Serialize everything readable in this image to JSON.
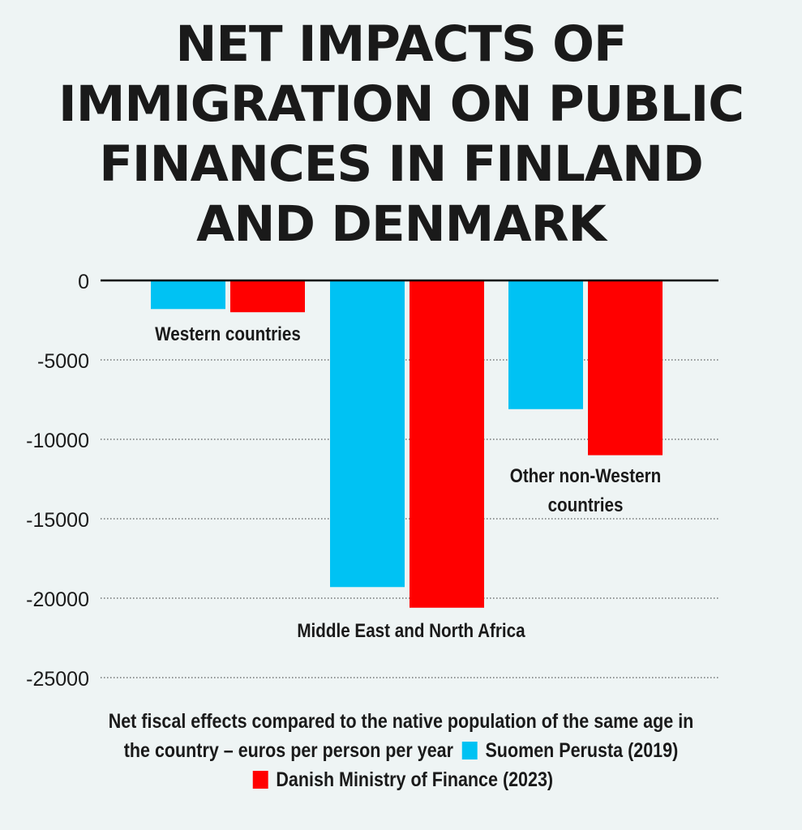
{
  "title_lines": [
    "NET IMPACTS OF",
    "IMMIGRATION ON PUBLIC",
    "FINANCES IN FINLAND",
    "AND DENMARK"
  ],
  "chart_data": {
    "type": "bar",
    "categories": [
      "Western countries",
      "Middle East and North Africa",
      "Other non-Western countries"
    ],
    "category_label_lines": [
      [
        "Western countries"
      ],
      [
        "Middle East and North Africa"
      ],
      [
        "Other non-Western",
        "countries"
      ]
    ],
    "series": [
      {
        "name": "Suomen Perusta (2019)",
        "color": "#00c2f3",
        "values": [
          -1800,
          -19300,
          -8100
        ]
      },
      {
        "name": "Danish Ministry of Finance (2023)",
        "color": "#ff0000",
        "values": [
          -2000,
          -20600,
          -11000
        ]
      }
    ],
    "yticks": [
      0,
      -5000,
      -10000,
      -15000,
      -20000,
      -25000
    ],
    "ylim": [
      -25000,
      0
    ],
    "grid": "dotted"
  },
  "caption": {
    "line1": "Net fiscal effects compared to the native population of the same age in",
    "line2": "the country – euros per person per year",
    "legend1": "Suomen Perusta (2019)",
    "legend2": "Danish Ministry of Finance (2023)"
  },
  "colors": {
    "background": "#eef4f4",
    "text": "#1a1a1a",
    "blue": "#00c2f3",
    "red": "#ff0000"
  }
}
